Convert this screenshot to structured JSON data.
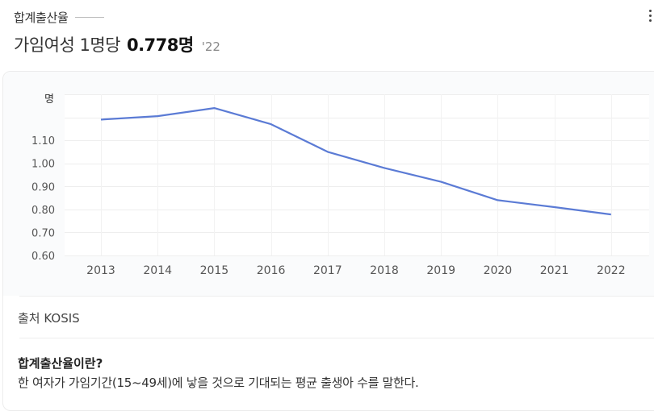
{
  "header": {
    "subtitle": "합계출산율",
    "prefix": "가임여성 1명당",
    "value": "0.778명",
    "year": "'22"
  },
  "source": "출처 KOSIS",
  "definition": {
    "title": "합계출산율이란?",
    "text": "한 여자가 가임기간(15~49세)에 낳을 것으로 기대되는 평균 출생아 수를 말한다."
  },
  "chart_data": {
    "type": "line",
    "ylabel": "명",
    "x": [
      "2013",
      "2014",
      "2015",
      "2016",
      "2017",
      "2018",
      "2019",
      "2020",
      "2021",
      "2022"
    ],
    "series": [
      {
        "values": [
          1.19,
          1.205,
          1.24,
          1.17,
          1.05,
          0.98,
          0.92,
          0.84,
          0.81,
          0.778
        ]
      }
    ],
    "yticks": [
      "0.60",
      "0.70",
      "0.80",
      "0.90",
      "1.00",
      "1.10"
    ],
    "ylim": [
      0.6,
      1.3
    ],
    "line_color": "#5b7bd5",
    "grid": true
  }
}
